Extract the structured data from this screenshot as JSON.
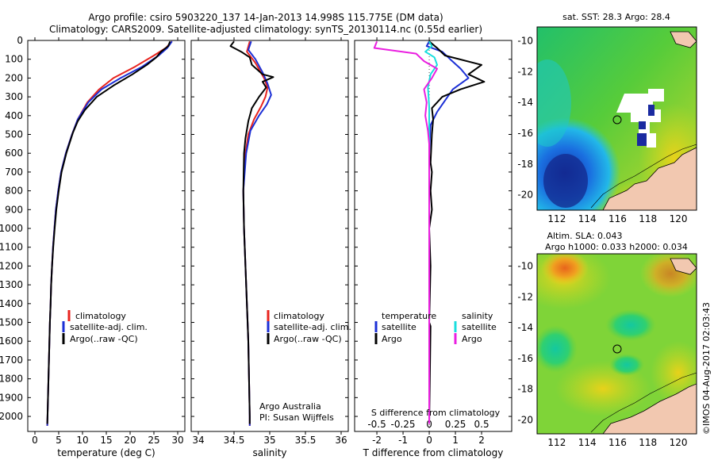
{
  "header": {
    "title_line1": "Argo profile: csiro 5903220_137 14-Jan-2013 14.998S 115.775E (DM data)",
    "title_line2": "Climatology: CARS2009. Satellite-adjusted climatology: synTS_20130114.nc (0.55d earlier)"
  },
  "colors": {
    "climatology": "#e8231e",
    "satellite": "#1b2fd6",
    "argo": "#000000",
    "sat_salinity": "#19dede",
    "argo_salinity": "#ea1ee0"
  },
  "chart_data": [
    {
      "type": "line",
      "id": "temperature",
      "xlabel": "temperature (deg C)",
      "ylabel": "",
      "xlim": [
        -1.5,
        31.5
      ],
      "ylim": [
        0,
        2080
      ],
      "xticks": [
        0,
        5,
        10,
        15,
        20,
        25,
        30
      ],
      "yticks": [
        0,
        100,
        200,
        300,
        400,
        500,
        600,
        700,
        800,
        900,
        1000,
        1100,
        1200,
        1300,
        1400,
        1500,
        1600,
        1700,
        1800,
        1900,
        2000
      ],
      "legend": [
        "climatology",
        "satellite-adj. clim.",
        "Argo(..raw -QC)"
      ],
      "series": [
        {
          "name": "climatology",
          "color": "#e8231e",
          "points": [
            [
              28.8,
              5
            ],
            [
              27.5,
              40
            ],
            [
              25,
              80
            ],
            [
              21,
              140
            ],
            [
              16.5,
              200
            ],
            [
              13.5,
              260
            ],
            [
              11,
              330
            ],
            [
              9,
              420
            ],
            [
              7.8,
              500
            ],
            [
              6.5,
              600
            ],
            [
              5.5,
              700
            ],
            [
              4.9,
              800
            ],
            [
              4.4,
              900
            ],
            [
              4.1,
              1000
            ],
            [
              3.8,
              1100
            ],
            [
              3.6,
              1200
            ],
            [
              3.4,
              1300
            ],
            [
              3.3,
              1400
            ],
            [
              3.15,
              1500
            ],
            [
              3.05,
              1600
            ],
            [
              2.95,
              1700
            ],
            [
              2.85,
              1800
            ],
            [
              2.75,
              1900
            ],
            [
              2.65,
              2000
            ],
            [
              2.6,
              2050
            ]
          ]
        },
        {
          "name": "satellite-adj. clim.",
          "color": "#1b2fd6",
          "points": [
            [
              28.8,
              5
            ],
            [
              27.8,
              40
            ],
            [
              26,
              80
            ],
            [
              22.5,
              140
            ],
            [
              18,
              200
            ],
            [
              14,
              260
            ],
            [
              11.2,
              330
            ],
            [
              9,
              420
            ],
            [
              7.8,
              500
            ],
            [
              6.5,
              600
            ],
            [
              5.5,
              700
            ],
            [
              4.9,
              800
            ],
            [
              4.4,
              900
            ],
            [
              4.1,
              1000
            ],
            [
              3.8,
              1100
            ],
            [
              3.6,
              1200
            ],
            [
              3.4,
              1300
            ],
            [
              3.3,
              1400
            ],
            [
              3.15,
              1500
            ],
            [
              3.05,
              1600
            ],
            [
              2.95,
              1700
            ],
            [
              2.85,
              1800
            ],
            [
              2.75,
              1900
            ],
            [
              2.65,
              2000
            ],
            [
              2.6,
              2050
            ]
          ]
        },
        {
          "name": "Argo(..raw -QC)",
          "color": "#000000",
          "points": [
            [
              28.4,
              5
            ],
            [
              28,
              30
            ],
            [
              26.5,
              60
            ],
            [
              25.5,
              90
            ],
            [
              23.5,
              130
            ],
            [
              20.5,
              180
            ],
            [
              16.5,
              240
            ],
            [
              13,
              300
            ],
            [
              10.5,
              370
            ],
            [
              9,
              430
            ],
            [
              8,
              490
            ],
            [
              6.6,
              600
            ],
            [
              5.6,
              700
            ],
            [
              5,
              800
            ],
            [
              4.5,
              900
            ],
            [
              4.15,
              1000
            ],
            [
              3.85,
              1100
            ],
            [
              3.6,
              1200
            ],
            [
              3.42,
              1300
            ],
            [
              3.3,
              1400
            ],
            [
              3.15,
              1500
            ],
            [
              3.05,
              1600
            ],
            [
              2.95,
              1700
            ],
            [
              2.85,
              1800
            ],
            [
              2.75,
              1900
            ],
            [
              2.65,
              2000
            ],
            [
              2.6,
              2040
            ]
          ]
        }
      ]
    },
    {
      "type": "line",
      "id": "salinity",
      "xlabel": "salinity",
      "xlim": [
        33.9,
        36.1
      ],
      "ylim": [
        0,
        2080
      ],
      "xticks": [
        "34",
        "34.5",
        "35",
        "35.5",
        "36"
      ],
      "xtick_values": [
        34,
        34.5,
        35,
        35.5,
        36
      ],
      "legend": [
        "climatology",
        "satellite-adj. clim.",
        "Argo(..raw -QC)"
      ],
      "annotation": [
        "Argo Australia",
        "PI: Susan Wijffels"
      ],
      "series": [
        {
          "name": "climatology",
          "color": "#e8231e",
          "points": [
            [
              34.72,
              5
            ],
            [
              34.68,
              60
            ],
            [
              34.8,
              120
            ],
            [
              34.92,
              200
            ],
            [
              34.97,
              250
            ],
            [
              34.94,
              300
            ],
            [
              34.88,
              350
            ],
            [
              34.78,
              420
            ],
            [
              34.7,
              500
            ],
            [
              34.66,
              600
            ],
            [
              34.63,
              800
            ],
            [
              34.64,
              1000
            ],
            [
              34.66,
              1200
            ],
            [
              34.68,
              1400
            ],
            [
              34.7,
              1600
            ],
            [
              34.71,
              1800
            ],
            [
              34.72,
              2000
            ],
            [
              34.72,
              2050
            ]
          ]
        },
        {
          "name": "satellite-adj. clim.",
          "color": "#1b2fd6",
          "points": [
            [
              34.74,
              5
            ],
            [
              34.7,
              50
            ],
            [
              34.8,
              100
            ],
            [
              34.9,
              170
            ],
            [
              34.97,
              230
            ],
            [
              35.02,
              290
            ],
            [
              34.96,
              340
            ],
            [
              34.85,
              400
            ],
            [
              34.73,
              480
            ],
            [
              34.67,
              600
            ],
            [
              34.63,
              800
            ],
            [
              34.64,
              1000
            ],
            [
              34.66,
              1200
            ],
            [
              34.68,
              1400
            ],
            [
              34.7,
              1600
            ],
            [
              34.71,
              1800
            ],
            [
              34.72,
              2000
            ],
            [
              34.72,
              2050
            ]
          ]
        },
        {
          "name": "Argo(..raw -QC)",
          "color": "#000000",
          "points": [
            [
              34.5,
              5
            ],
            [
              34.45,
              30
            ],
            [
              34.6,
              60
            ],
            [
              34.72,
              90
            ],
            [
              34.75,
              130
            ],
            [
              34.9,
              180
            ],
            [
              35.05,
              195
            ],
            [
              34.9,
              220
            ],
            [
              34.95,
              250
            ],
            [
              34.85,
              300
            ],
            [
              34.75,
              360
            ],
            [
              34.7,
              430
            ],
            [
              34.66,
              520
            ],
            [
              34.64,
              600
            ],
            [
              34.63,
              800
            ],
            [
              34.64,
              1000
            ],
            [
              34.66,
              1200
            ],
            [
              34.68,
              1400
            ],
            [
              34.7,
              1600
            ],
            [
              34.71,
              1800
            ],
            [
              34.72,
              2000
            ],
            [
              34.72,
              2040
            ]
          ]
        }
      ]
    },
    {
      "type": "line",
      "id": "difference",
      "xlabel_bottom": "T difference from climatology",
      "xlabel_top": "S difference from climatology",
      "xlim": [
        -2.85,
        3.15
      ],
      "ylim": [
        0,
        2080
      ],
      "xticks_bottom": [
        "-2",
        "-1",
        "0",
        "1",
        "2"
      ],
      "xticks_bottom_values": [
        -2,
        -1,
        0,
        1,
        2
      ],
      "xticks_top": [
        "-0.5",
        "-0.25",
        "0",
        "0.25",
        "0.5"
      ],
      "xticks_top_values": [
        -2,
        -1,
        0,
        1,
        2
      ],
      "legend_left": {
        "header": "temperature",
        "items": [
          "satellite",
          "Argo"
        ]
      },
      "legend_right": {
        "header": "salinity",
        "items": [
          "satellite",
          "Argo"
        ]
      },
      "series": [
        {
          "name": "T satellite",
          "color": "#1b2fd6",
          "points": [
            [
              0,
              5
            ],
            [
              -0.1,
              30
            ],
            [
              0.5,
              60
            ],
            [
              0.8,
              100
            ],
            [
              1.2,
              150
            ],
            [
              1.5,
              200
            ],
            [
              0.9,
              260
            ],
            [
              0.6,
              320
            ],
            [
              0.3,
              380
            ],
            [
              0.05,
              450
            ],
            [
              0,
              600
            ],
            [
              0,
              2040
            ]
          ]
        },
        {
          "name": "T Argo",
          "color": "#000000",
          "points": [
            [
              0,
              5
            ],
            [
              0.3,
              40
            ],
            [
              0.6,
              80
            ],
            [
              2.0,
              130
            ],
            [
              1.5,
              180
            ],
            [
              2.1,
              220
            ],
            [
              1.2,
              260
            ],
            [
              0.5,
              300
            ],
            [
              0.1,
              360
            ],
            [
              0.15,
              420
            ],
            [
              0.1,
              500
            ],
            [
              0.05,
              650
            ],
            [
              0.1,
              700
            ],
            [
              0.05,
              800
            ],
            [
              0.1,
              900
            ],
            [
              0,
              1000
            ],
            [
              0.05,
              1200
            ],
            [
              0,
              1500
            ],
            [
              0.05,
              1520
            ],
            [
              0,
              2040
            ]
          ]
        },
        {
          "name": "S satellite",
          "color": "#19dede",
          "points": [
            [
              0,
              5
            ],
            [
              0.1,
              30
            ],
            [
              -0.15,
              60
            ],
            [
              0.2,
              90
            ],
            [
              0.3,
              130
            ],
            [
              0.05,
              180
            ],
            [
              -0.05,
              250
            ],
            [
              0,
              350
            ],
            [
              0,
              2040
            ]
          ]
        },
        {
          "name": "S Argo",
          "color": "#ea1ee0",
          "points": [
            [
              -2.0,
              5
            ],
            [
              -2.1,
              40
            ],
            [
              -0.5,
              70
            ],
            [
              -0.2,
              110
            ],
            [
              0.3,
              150
            ],
            [
              0.1,
              200
            ],
            [
              -0.2,
              260
            ],
            [
              -0.1,
              330
            ],
            [
              -0.15,
              400
            ],
            [
              -0.05,
              480
            ],
            [
              0,
              550
            ],
            [
              0,
              2040
            ]
          ]
        }
      ]
    }
  ],
  "maps": [
    {
      "id": "sst-map",
      "title": "sat. SST: 28.3  Argo: 28.4",
      "xticks": [
        "112",
        "114",
        "116",
        "118",
        "120"
      ],
      "yticks": [
        "-10",
        "-12",
        "-14",
        "-16",
        "-18",
        "-20"
      ],
      "marker": {
        "lon": 115.775,
        "lat": -14.998
      }
    },
    {
      "id": "sla-map",
      "title_line1": "Altim. SLA: 0.043",
      "title_line2": "Argo h1000: 0.033  h2000: 0.034",
      "xticks": [
        "112",
        "114",
        "116",
        "118",
        "120"
      ],
      "yticks": [
        "-10",
        "-12",
        "-14",
        "-16",
        "-18",
        "-20"
      ],
      "marker": {
        "lon": 115.775,
        "lat": -14.998
      }
    }
  ],
  "footer": {
    "credit": "©IMOS 04-Aug-2017 02:03:43"
  }
}
